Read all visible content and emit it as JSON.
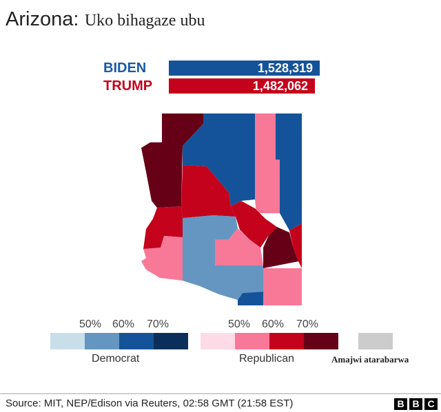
{
  "title": {
    "state": "Arizona:",
    "subtitle": "Uko bihagaze ubu"
  },
  "results": {
    "biden": {
      "name": "BIDEN",
      "votes": "1,528,319",
      "color": "#145399"
    },
    "trump": {
      "name": "TRUMP",
      "votes": "1,482,062",
      "color": "#c4021b"
    }
  },
  "legend": {
    "democrat": {
      "label": "Democrat",
      "ticks": [
        "50%",
        "60%",
        "70%"
      ],
      "colors": [
        "#c8dfea",
        "#6496c1",
        "#145399",
        "#0b2f5a"
      ]
    },
    "republican": {
      "label": "Republican",
      "ticks": [
        "50%",
        "60%",
        "70%"
      ],
      "colors": [
        "#fcdbe6",
        "#f87898",
        "#c4021b",
        "#660017"
      ]
    },
    "no_votes": {
      "label": "Amajwi atarabarwa",
      "color": "#cccccc"
    }
  },
  "footer": {
    "source": "Source: MIT, NEP/Edison via Reuters, 02:58 GMT (21:58 EST)",
    "logo": [
      "B",
      "B",
      "C"
    ]
  }
}
